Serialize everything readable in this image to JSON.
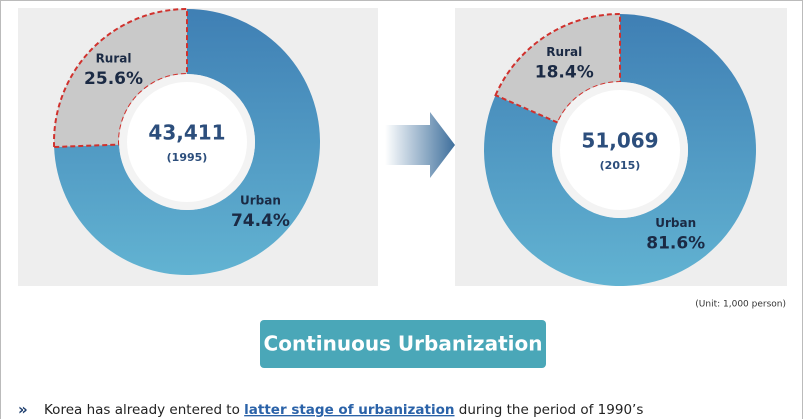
{
  "chart_data": [
    {
      "type": "donut",
      "categories": [
        "Urban",
        "Rural"
      ],
      "values": [
        74.4,
        25.6
      ],
      "value_labels": [
        "74.4%",
        "25.6%"
      ],
      "colors": [
        "#4f93c2",
        "#c9c9c9"
      ],
      "center_value": "43,411",
      "center_label": "(1995)"
    },
    {
      "type": "donut",
      "categories": [
        "Urban",
        "Rural"
      ],
      "values": [
        81.6,
        18.4
      ],
      "value_labels": [
        "81.6%",
        "18.4%"
      ],
      "colors": [
        "#4f93c2",
        "#c9c9c9"
      ],
      "center_value": "51,069",
      "center_label": "(2015)"
    }
  ],
  "unit_note": "(Unit: 1,000 person)",
  "banner": "Continuous Urbanization",
  "bullet": {
    "before": "Korea has already entered to ",
    "highlight": "latter stage of urbanization",
    "after": " during the period of 1990’s"
  }
}
